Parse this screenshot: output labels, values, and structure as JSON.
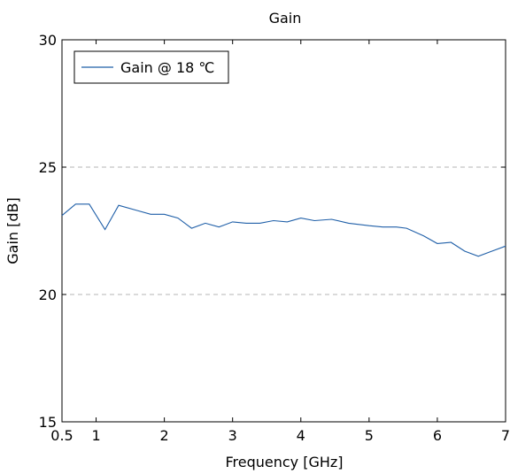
{
  "chart_data": {
    "type": "line",
    "title": "Gain",
    "xlabel": "Frequency [GHz]",
    "ylabel": "Gain [dB]",
    "xlim": [
      0.5,
      7
    ],
    "ylim": [
      15,
      30
    ],
    "x_ticks": [
      "0.5",
      "1",
      "2",
      "3",
      "4",
      "5",
      "6",
      "7"
    ],
    "y_ticks": [
      "15",
      "20",
      "25",
      "30"
    ],
    "grid": "horizontal dashed at y-ticks",
    "legend_position": "top-left",
    "series": [
      {
        "name": "Gain @ 18 ℃",
        "color": "#1f5fa8",
        "x": [
          0.5,
          0.7,
          0.9,
          1.13,
          1.33,
          1.6,
          1.8,
          2.0,
          2.2,
          2.4,
          2.6,
          2.8,
          3.0,
          3.2,
          3.4,
          3.6,
          3.8,
          4.0,
          4.2,
          4.45,
          4.7,
          5.0,
          5.2,
          5.4,
          5.55,
          5.8,
          6.0,
          6.2,
          6.4,
          6.6,
          6.8,
          7.0
        ],
        "values": [
          23.1,
          23.55,
          23.55,
          22.55,
          23.5,
          23.3,
          23.15,
          23.15,
          23.0,
          22.6,
          22.8,
          22.65,
          22.85,
          22.8,
          22.8,
          22.9,
          22.85,
          23.0,
          22.9,
          22.95,
          22.8,
          22.7,
          22.65,
          22.65,
          22.6,
          22.3,
          22.0,
          22.05,
          21.7,
          21.5,
          21.7,
          21.9
        ]
      }
    ]
  }
}
